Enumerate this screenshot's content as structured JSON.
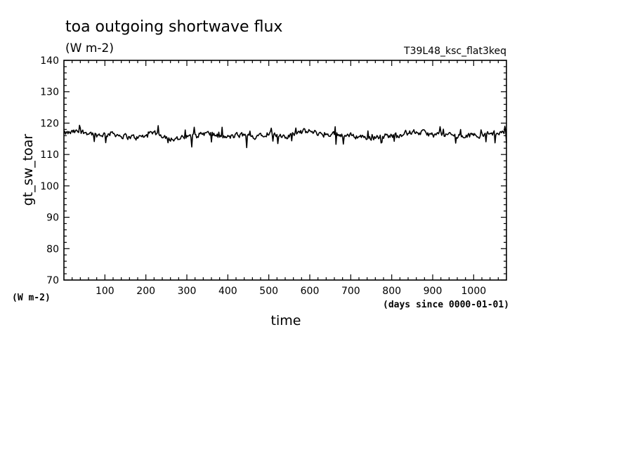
{
  "chart_data": {
    "type": "line",
    "title": "toa outgoing shortwave flux",
    "units": "(W m-2)",
    "run_label": "T39L48_ksc_flat3keq",
    "ylabel": "gt_sw_toar",
    "yunits": "(W m-2)",
    "xlabel": "time",
    "xunits": "(days since 0000-01-01)",
    "xlim": [
      0,
      1080
    ],
    "ylim": [
      70,
      140
    ],
    "x_ticks": [
      100,
      200,
      300,
      400,
      500,
      600,
      700,
      800,
      900,
      1000
    ],
    "x_tick_labels": [
      "100",
      "200",
      "300",
      "400",
      "500",
      "600",
      "700",
      "800",
      "900",
      "1000"
    ],
    "y_ticks": [
      70,
      80,
      90,
      100,
      110,
      120,
      130,
      140
    ],
    "y_tick_labels": [
      "70",
      "80",
      "90",
      "100",
      "110",
      "120",
      "130",
      "140"
    ],
    "y_minor_step": 2,
    "x_minor_step": 20,
    "grid": false,
    "series": [
      {
        "x": [
          0,
          20,
          40,
          60,
          80,
          100,
          120,
          140,
          160,
          180,
          200,
          220,
          240,
          260,
          280,
          300,
          320,
          340,
          360,
          380,
          400,
          420,
          440,
          460,
          480,
          500,
          520,
          540,
          560,
          580,
          600,
          620,
          640,
          660,
          680,
          700,
          720,
          740,
          760,
          780,
          800,
          820,
          840,
          860,
          880,
          900,
          920,
          940,
          960,
          980,
          1000,
          1020,
          1040,
          1060,
          1080
        ],
        "y": [
          116.5,
          117.0,
          117.2,
          117.0,
          116.2,
          116.5,
          116.8,
          116.0,
          115.6,
          115.4,
          115.9,
          116.6,
          116.2,
          115.2,
          115.0,
          115.4,
          116.2,
          116.8,
          116.5,
          115.6,
          115.4,
          116.0,
          116.2,
          115.5,
          116.6,
          117.0,
          116.2,
          115.0,
          116.8,
          117.2,
          117.3,
          116.8,
          116.4,
          116.7,
          116.2,
          116.0,
          115.8,
          115.5,
          115.3,
          115.8,
          116.1,
          116.5,
          116.9,
          117.1,
          116.8,
          116.2,
          116.5,
          116.3,
          116.0,
          115.8,
          116.2,
          116.4,
          116.6,
          116.9,
          117.2
        ],
        "noise_amplitude": 1.4
      }
    ]
  }
}
